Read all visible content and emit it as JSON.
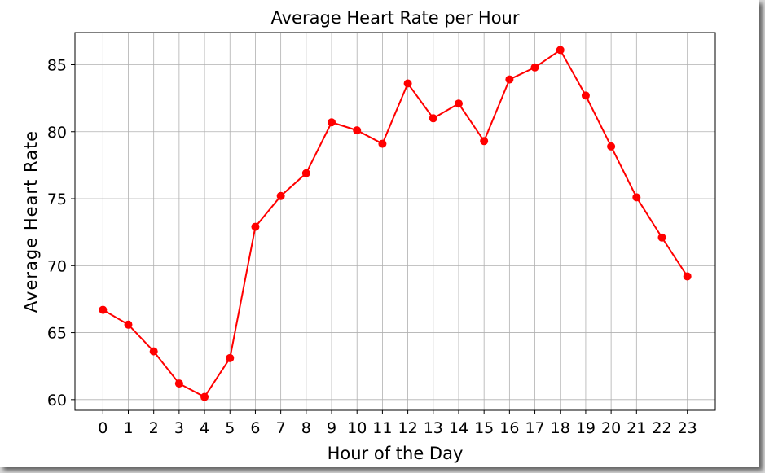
{
  "chart_data": {
    "type": "line",
    "title": "Average Heart Rate per Hour",
    "xlabel": "Hour of the Day",
    "ylabel": "Average Heart Rate",
    "x": [
      0,
      1,
      2,
      3,
      4,
      5,
      6,
      7,
      8,
      9,
      10,
      11,
      12,
      13,
      14,
      15,
      16,
      17,
      18,
      19,
      20,
      21,
      22,
      23
    ],
    "x_tick_labels": [
      "0",
      "1",
      "2",
      "3",
      "4",
      "5",
      "6",
      "7",
      "8",
      "9",
      "10",
      "11",
      "12",
      "13",
      "14",
      "15",
      "16",
      "17",
      "18",
      "19",
      "20",
      "21",
      "22",
      "23"
    ],
    "series": [
      {
        "values": [
          66.7,
          65.6,
          63.6,
          61.2,
          60.2,
          63.1,
          72.9,
          75.2,
          76.9,
          80.7,
          80.1,
          79.1,
          83.6,
          81.0,
          82.1,
          79.3,
          83.9,
          84.8,
          86.1,
          82.7,
          78.9,
          75.1,
          72.1,
          69.2
        ],
        "color": "#ff0000",
        "marker": "circle"
      }
    ],
    "y_ticks": [
      60,
      65,
      70,
      75,
      80,
      85
    ],
    "y_tick_labels": [
      "60",
      "65",
      "70",
      "75",
      "80",
      "85"
    ],
    "xlim": [
      -1.1,
      24.1
    ],
    "ylim": [
      59.2,
      87.4
    ],
    "grid": true,
    "legend": false
  }
}
